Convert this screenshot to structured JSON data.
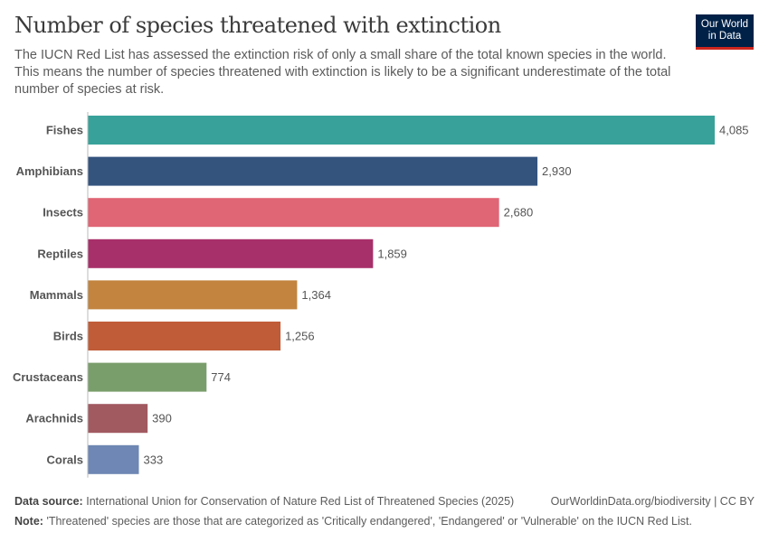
{
  "header": {
    "title": "Number of species threatened with extinction",
    "subtitle": "The IUCN Red List has assessed the extinction risk of only a small share of the total known species in the world. This means the number of species threatened with extinction is likely to be a significant underestimate of the total number of species at risk.",
    "logo_line1": "Our World",
    "logo_line2": "in Data"
  },
  "chart_data": {
    "type": "bar",
    "orientation": "horizontal",
    "categories": [
      "Fishes",
      "Amphibians",
      "Insects",
      "Reptiles",
      "Mammals",
      "Birds",
      "Crustaceans",
      "Arachnids",
      "Corals"
    ],
    "values": [
      4085,
      2930,
      2680,
      1859,
      1364,
      1256,
      774,
      390,
      333
    ],
    "value_labels": [
      "4,085",
      "2,930",
      "2,680",
      "1,859",
      "1,364",
      "1,256",
      "774",
      "390",
      "333"
    ],
    "colors": [
      "#38a29a",
      "#34547e",
      "#e06575",
      "#a8306a",
      "#c2843f",
      "#c05c38",
      "#7a9e6b",
      "#a15a60",
      "#6e87b4"
    ],
    "xlim": [
      0,
      4085
    ],
    "grid": false
  },
  "footer": {
    "source_label": "Data source:",
    "source_text": "International Union for Conservation of Nature Red List of Threatened Species (2025)",
    "url_text": "OurWorldinData.org/biodiversity | CC BY",
    "note_label": "Note:",
    "note_text": "'Threatened' species are those that are categorized as 'Critically endangered', 'Endangered' or 'Vulnerable' on the IUCN Red List."
  }
}
